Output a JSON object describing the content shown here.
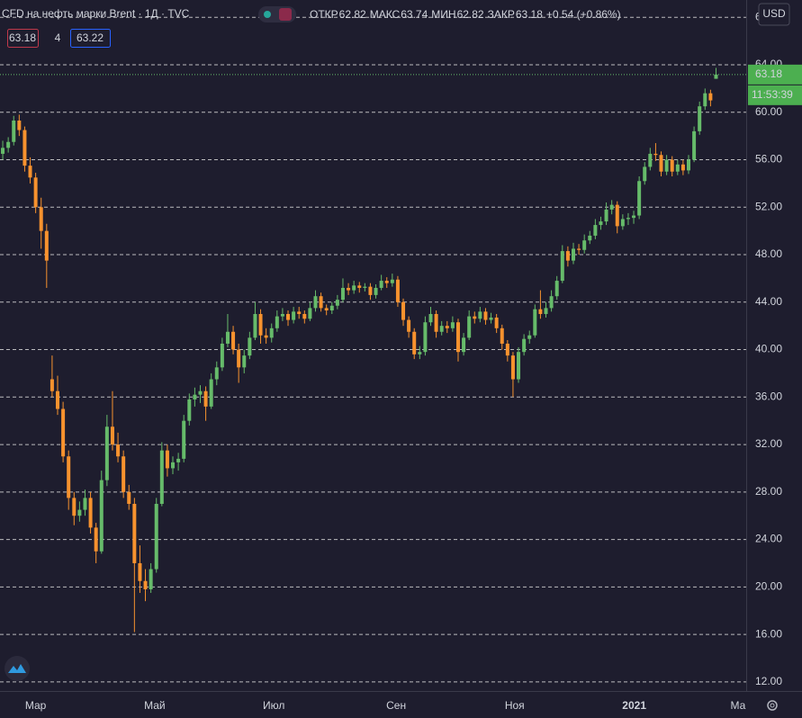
{
  "header": {
    "title": "CFD на нефть марки Brent · 1Д · TVC",
    "legend": [
      {
        "label": "ОТКР",
        "value": "62.82"
      },
      {
        "label": "МАКС",
        "value": "63.74"
      },
      {
        "label": "МИН",
        "value": "62.82"
      },
      {
        "label": "ЗАКР",
        "value": "63.18"
      }
    ],
    "change": "+0.54 (+0.86%)",
    "bid": "63.18",
    "spread": "4",
    "ask": "63.22",
    "currency": "USD"
  },
  "chart_data": {
    "type": "candlestick",
    "up_color": "#66bb6a",
    "down_color": "#f7922e",
    "grid": true,
    "last_price_label": "63.18",
    "countdown": "11:53:39",
    "xlim": [
      -0.5,
      135.5
    ],
    "xticks": [
      {
        "value": 6,
        "label": "Мар"
      },
      {
        "value": 27.7,
        "label": "Май"
      },
      {
        "value": 49.4,
        "label": "Июл"
      },
      {
        "value": 71.7,
        "label": "Сен"
      },
      {
        "value": 93.3,
        "label": "Ноя"
      },
      {
        "value": 115.1,
        "label": "2021"
      },
      {
        "value": 134,
        "label": "Ма"
      }
    ],
    "ylim": [
      11.23,
      69.46
    ],
    "yticks": [
      {
        "value": 12,
        "label": "12.00"
      },
      {
        "value": 16,
        "label": "16.00"
      },
      {
        "value": 20,
        "label": "20.00"
      },
      {
        "value": 24,
        "label": "24.00"
      },
      {
        "value": 28,
        "label": "28.00"
      },
      {
        "value": 32,
        "label": "32.00"
      },
      {
        "value": 36,
        "label": "36.00"
      },
      {
        "value": 40,
        "label": "40.00"
      },
      {
        "value": 44,
        "label": "44.00"
      },
      {
        "value": 48,
        "label": "48.00"
      },
      {
        "value": 52,
        "label": "52.00"
      },
      {
        "value": 56,
        "label": "56.00"
      },
      {
        "value": 60,
        "label": "60.00"
      },
      {
        "value": 64,
        "label": "64.00"
      },
      {
        "value": 68,
        "label": "68.00"
      }
    ],
    "ohlc": [
      [
        56.5,
        57.6,
        56.0,
        57.0
      ],
      [
        57.0,
        57.9,
        56.6,
        57.5
      ],
      [
        57.5,
        59.7,
        57.2,
        59.3
      ],
      [
        59.3,
        59.8,
        58.0,
        58.5
      ],
      [
        58.5,
        58.8,
        55.0,
        55.5
      ],
      [
        55.5,
        56.2,
        54.0,
        54.5
      ],
      [
        54.5,
        54.9,
        51.5,
        52.0
      ],
      [
        52.0,
        52.8,
        48.5,
        50.0
      ],
      [
        50.0,
        50.6,
        45.2,
        47.5
      ],
      [
        37.5,
        39.5,
        36.0,
        36.5
      ],
      [
        36.5,
        37.8,
        34.5,
        35.0
      ],
      [
        35.0,
        35.6,
        30.5,
        31.0
      ],
      [
        31.0,
        31.5,
        26.5,
        27.5
      ],
      [
        27.5,
        28.0,
        25.2,
        26.0
      ],
      [
        26.0,
        27.2,
        25.5,
        26.5
      ],
      [
        26.5,
        28.2,
        26.0,
        27.5
      ],
      [
        27.5,
        28.0,
        24.5,
        25.0
      ],
      [
        25.0,
        25.4,
        22.0,
        23.0
      ],
      [
        23.0,
        29.8,
        22.8,
        29.0
      ],
      [
        29.0,
        34.5,
        28.5,
        33.5
      ],
      [
        33.5,
        36.5,
        31.5,
        32.0
      ],
      [
        32.0,
        33.0,
        30.5,
        31.0
      ],
      [
        31.0,
        31.5,
        27.5,
        28.0
      ],
      [
        28.0,
        28.6,
        26.5,
        27.0
      ],
      [
        27.0,
        27.5,
        16.2,
        22.0
      ],
      [
        22.0,
        23.5,
        19.5,
        20.5
      ],
      [
        20.5,
        21.5,
        18.8,
        19.8
      ],
      [
        19.8,
        22.0,
        19.5,
        21.5
      ],
      [
        21.5,
        27.5,
        21.2,
        27.0
      ],
      [
        27.0,
        32.2,
        26.8,
        31.5
      ],
      [
        31.5,
        32.0,
        29.3,
        30.0
      ],
      [
        30.0,
        31.0,
        29.5,
        30.5
      ],
      [
        30.5,
        31.3,
        29.8,
        30.8
      ],
      [
        30.8,
        34.5,
        30.5,
        34.0
      ],
      [
        34.0,
        36.3,
        33.6,
        35.8
      ],
      [
        35.8,
        36.8,
        35.2,
        36.2
      ],
      [
        36.2,
        37.0,
        35.5,
        36.5
      ],
      [
        36.5,
        36.9,
        34.0,
        35.2
      ],
      [
        35.2,
        38.0,
        35.0,
        37.5
      ],
      [
        37.5,
        39.0,
        37.0,
        38.5
      ],
      [
        38.5,
        41.0,
        38.2,
        40.5
      ],
      [
        40.5,
        43.0,
        40.2,
        41.5
      ],
      [
        41.5,
        42.0,
        39.6,
        40.0
      ],
      [
        40.0,
        40.5,
        37.2,
        38.5
      ],
      [
        38.5,
        40.0,
        38.0,
        39.5
      ],
      [
        39.5,
        41.5,
        39.2,
        41.0
      ],
      [
        41.0,
        44.0,
        40.8,
        43.0
      ],
      [
        43.0,
        43.4,
        40.5,
        41.2
      ],
      [
        41.2,
        41.8,
        40.5,
        41.0
      ],
      [
        41.0,
        42.2,
        40.6,
        41.8
      ],
      [
        41.8,
        43.3,
        41.5,
        42.8
      ],
      [
        42.8,
        43.5,
        42.4,
        43.0
      ],
      [
        43.0,
        43.3,
        42.0,
        42.5
      ],
      [
        42.5,
        43.6,
        42.2,
        43.2
      ],
      [
        43.2,
        43.6,
        42.6,
        43.0
      ],
      [
        43.0,
        43.3,
        42.2,
        42.6
      ],
      [
        42.6,
        44.0,
        42.4,
        43.5
      ],
      [
        43.5,
        45.0,
        43.2,
        44.5
      ],
      [
        44.5,
        44.8,
        43.2,
        43.5
      ],
      [
        43.5,
        43.8,
        42.9,
        43.3
      ],
      [
        43.3,
        44.0,
        43.0,
        43.7
      ],
      [
        43.7,
        44.6,
        43.4,
        44.2
      ],
      [
        44.2,
        46.0,
        44.0,
        45.2
      ],
      [
        45.2,
        45.6,
        44.6,
        45.0
      ],
      [
        45.0,
        45.8,
        44.7,
        45.4
      ],
      [
        45.4,
        45.7,
        44.8,
        45.2
      ],
      [
        45.2,
        45.6,
        44.9,
        45.3
      ],
      [
        45.3,
        45.6,
        44.2,
        44.6
      ],
      [
        44.6,
        45.5,
        44.3,
        45.2
      ],
      [
        45.2,
        46.3,
        45.0,
        45.8
      ],
      [
        45.8,
        46.1,
        45.2,
        45.6
      ],
      [
        45.6,
        46.4,
        45.3,
        45.9
      ],
      [
        45.9,
        46.2,
        43.6,
        44.0
      ],
      [
        44.0,
        44.3,
        42.0,
        42.5
      ],
      [
        42.5,
        42.8,
        41.0,
        41.5
      ],
      [
        41.5,
        41.8,
        39.2,
        39.6
      ],
      [
        39.6,
        40.3,
        39.2,
        39.8
      ],
      [
        39.8,
        42.8,
        39.5,
        42.3
      ],
      [
        42.3,
        43.6,
        42.0,
        43.0
      ],
      [
        43.0,
        43.3,
        41.0,
        41.5
      ],
      [
        41.5,
        42.4,
        41.2,
        42.0
      ],
      [
        42.0,
        42.4,
        41.4,
        41.8
      ],
      [
        41.8,
        42.8,
        41.5,
        42.3
      ],
      [
        42.3,
        42.6,
        39.0,
        39.8
      ],
      [
        39.8,
        41.4,
        39.5,
        41.0
      ],
      [
        41.0,
        43.3,
        40.8,
        42.8
      ],
      [
        42.8,
        43.2,
        42.2,
        42.6
      ],
      [
        42.6,
        43.6,
        42.3,
        43.2
      ],
      [
        43.2,
        43.5,
        42.1,
        42.5
      ],
      [
        42.5,
        43.1,
        42.2,
        42.7
      ],
      [
        42.7,
        43.0,
        41.4,
        41.8
      ],
      [
        41.8,
        42.1,
        40.0,
        40.5
      ],
      [
        40.5,
        40.8,
        39.0,
        39.5
      ],
      [
        39.5,
        39.8,
        36.0,
        37.5
      ],
      [
        37.5,
        40.2,
        37.2,
        39.8
      ],
      [
        39.8,
        41.3,
        39.5,
        40.9
      ],
      [
        40.9,
        41.6,
        40.5,
        41.2
      ],
      [
        41.2,
        43.8,
        41.0,
        43.4
      ],
      [
        43.4,
        45.0,
        42.6,
        43.0
      ],
      [
        43.0,
        44.0,
        42.7,
        43.5
      ],
      [
        43.5,
        45.0,
        43.2,
        44.5
      ],
      [
        44.5,
        46.2,
        44.2,
        45.8
      ],
      [
        45.8,
        48.8,
        45.6,
        48.3
      ],
      [
        48.3,
        48.7,
        47.0,
        47.5
      ],
      [
        47.5,
        49.0,
        47.2,
        48.5
      ],
      [
        48.5,
        48.9,
        48.0,
        48.4
      ],
      [
        48.4,
        49.7,
        48.1,
        49.2
      ],
      [
        49.2,
        50.0,
        48.9,
        49.6
      ],
      [
        49.6,
        51.0,
        49.3,
        50.5
      ],
      [
        50.5,
        51.2,
        50.1,
        50.8
      ],
      [
        50.8,
        52.4,
        50.5,
        51.8
      ],
      [
        51.8,
        52.6,
        51.4,
        52.2
      ],
      [
        52.2,
        52.5,
        49.8,
        50.4
      ],
      [
        50.4,
        51.4,
        50.1,
        51.0
      ],
      [
        51.0,
        51.5,
        50.5,
        51.1
      ],
      [
        51.1,
        51.7,
        50.6,
        51.3
      ],
      [
        51.3,
        54.6,
        51.0,
        54.2
      ],
      [
        54.2,
        55.8,
        53.9,
        55.4
      ],
      [
        55.4,
        57.0,
        55.1,
        56.5
      ],
      [
        56.5,
        57.4,
        55.9,
        56.4
      ],
      [
        56.4,
        56.7,
        54.6,
        55.0
      ],
      [
        55.0,
        56.4,
        54.7,
        56.0
      ],
      [
        56.0,
        56.3,
        54.6,
        55.0
      ],
      [
        55.0,
        56.0,
        54.7,
        55.6
      ],
      [
        55.6,
        56.0,
        54.7,
        55.1
      ],
      [
        55.1,
        56.4,
        54.8,
        56.0
      ],
      [
        56.0,
        58.8,
        55.8,
        58.4
      ],
      [
        58.4,
        60.9,
        58.1,
        60.5
      ],
      [
        60.5,
        62.0,
        60.2,
        61.6
      ],
      [
        61.6,
        61.9,
        60.5,
        61.0
      ],
      [
        62.82,
        63.74,
        62.82,
        63.18
      ]
    ]
  }
}
